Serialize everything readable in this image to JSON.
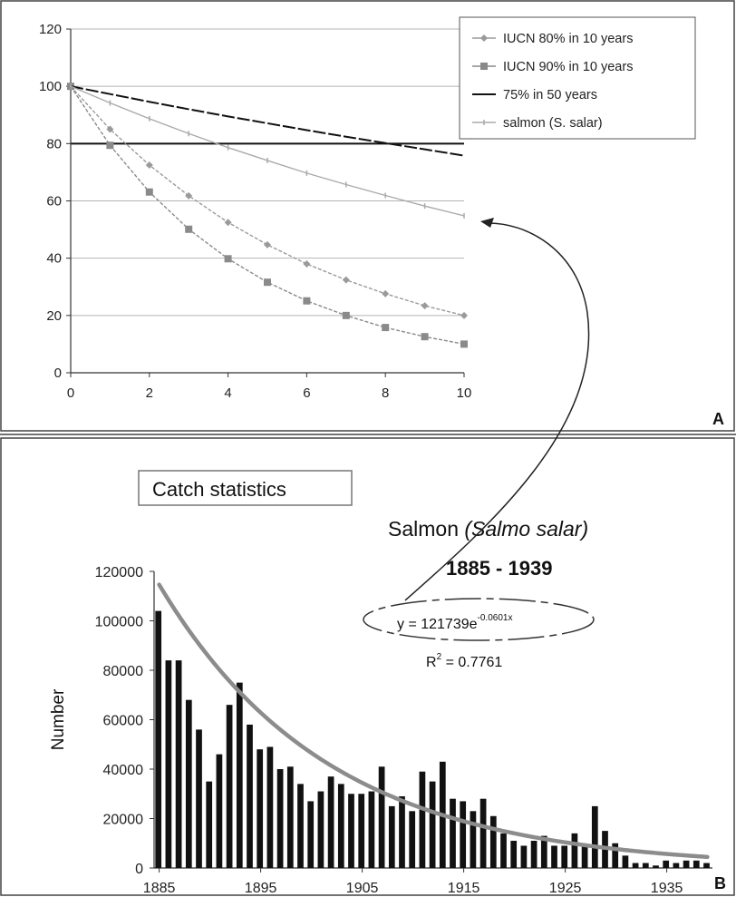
{
  "panel_labels": {
    "a": "A",
    "b": "B"
  },
  "chart_data": [
    {
      "type": "line",
      "panel": "A",
      "x": [
        0,
        1,
        2,
        3,
        4,
        5,
        6,
        7,
        8,
        9,
        10
      ],
      "xlim": [
        0,
        10
      ],
      "ylim": [
        0,
        120
      ],
      "xticks": [
        "0",
        "2",
        "4",
        "6",
        "8",
        "10"
      ],
      "yticks": [
        "0",
        "20",
        "40",
        "60",
        "80",
        "100",
        "120"
      ],
      "grid": true,
      "legend_position": "top-right",
      "series": [
        {
          "name": "IUCN 80% in 10 years",
          "color": "#9a9a9a",
          "marker": "diamond",
          "values": [
            100,
            85,
            72.5,
            61.8,
            52.5,
            44.7,
            38.0,
            32.4,
            27.6,
            23.4,
            20
          ]
        },
        {
          "name": "IUCN 90% in 10 years",
          "color": "#8a8a8a",
          "marker": "square",
          "values": [
            100,
            79.4,
            63.1,
            50.1,
            39.8,
            31.6,
            25.1,
            20.0,
            15.8,
            12.6,
            10
          ]
        },
        {
          "name": "75% in 50 years",
          "color": "#111111",
          "marker": "none",
          "values": [
            100,
            97.3,
            94.6,
            92.0,
            89.5,
            87.1,
            84.7,
            82.4,
            80.2,
            78.0,
            75.8
          ]
        },
        {
          "name": "salmon (S. salar)",
          "color": "#aaaaaa",
          "marker": "tick",
          "values": [
            100,
            94.2,
            88.7,
            83.5,
            78.6,
            74.1,
            69.7,
            65.7,
            61.9,
            58.2,
            54.8
          ]
        }
      ],
      "reference_line": {
        "y": 80,
        "color": "#111111"
      }
    },
    {
      "type": "bar",
      "panel": "B",
      "title": "Catch statistics",
      "subtitle": "Salmon (Salmo salar)",
      "subtitle_italic": "(Salmo salar)",
      "subtitle_plain": "Salmon ",
      "year_range": "1885 - 1939",
      "ylabel": "Number",
      "ylim": [
        0,
        120000
      ],
      "xlim": [
        1885,
        1939
      ],
      "xticks": [
        "1885",
        "1895",
        "1905",
        "1915",
        "1925",
        "1935"
      ],
      "yticks": [
        "0",
        "20000",
        "40000",
        "60000",
        "80000",
        "100000",
        "120000"
      ],
      "bar_color": "#111111",
      "trend_color": "#8c8c8c",
      "equation_prefix": "y = 121739e",
      "equation_exponent": "-0.0601x",
      "r2_prefix": "R",
      "r2_sup": "2",
      "r2_value": " = 0.7761",
      "trend": {
        "a": 121739,
        "b": -0.0601
      },
      "categories": [
        1885,
        1886,
        1887,
        1888,
        1889,
        1890,
        1891,
        1892,
        1893,
        1894,
        1895,
        1896,
        1897,
        1898,
        1899,
        1900,
        1901,
        1902,
        1903,
        1904,
        1905,
        1906,
        1907,
        1908,
        1909,
        1910,
        1911,
        1912,
        1913,
        1914,
        1915,
        1916,
        1917,
        1918,
        1919,
        1920,
        1921,
        1922,
        1923,
        1924,
        1925,
        1926,
        1927,
        1928,
        1929,
        1930,
        1931,
        1932,
        1933,
        1934,
        1935,
        1936,
        1937,
        1938,
        1939
      ],
      "values": [
        104000,
        84000,
        84000,
        68000,
        56000,
        35000,
        46000,
        66000,
        75000,
        58000,
        48000,
        49000,
        40000,
        41000,
        34000,
        27000,
        31000,
        37000,
        34000,
        30000,
        30000,
        31000,
        41000,
        25000,
        29000,
        23000,
        39000,
        35000,
        43000,
        28000,
        27000,
        23000,
        28000,
        21000,
        14000,
        11000,
        9000,
        11000,
        13000,
        9000,
        9000,
        14000,
        9000,
        25000,
        15000,
        10000,
        5000,
        2000,
        2000,
        1000,
        3000,
        2000,
        3000,
        3000,
        2000
      ]
    }
  ]
}
